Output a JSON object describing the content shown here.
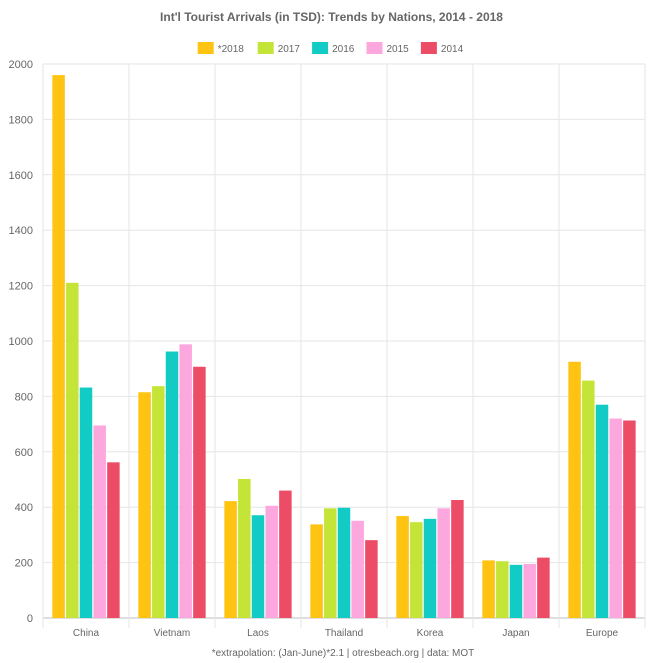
{
  "chart_data": {
    "type": "bar",
    "title": "Int'l Tourist Arrivals (in TSD): Trends by Nations, 2014 - 2018",
    "categories": [
      "China",
      "Vietnam",
      "Laos",
      "Thailand",
      "Korea",
      "Japan",
      "Europe"
    ],
    "series": [
      {
        "name": "*2018",
        "color": "#FFC312",
        "values": [
          1960,
          815,
          422,
          338,
          368,
          208,
          925
        ]
      },
      {
        "name": "2017",
        "color": "#C4E538",
        "values": [
          1210,
          837,
          502,
          396,
          346,
          205,
          857
        ]
      },
      {
        "name": "2016",
        "color": "#12CBC4",
        "values": [
          832,
          962,
          371,
          398,
          358,
          192,
          770
        ]
      },
      {
        "name": "2015",
        "color": "#FDA7DF",
        "values": [
          695,
          988,
          405,
          351,
          396,
          195,
          720
        ]
      },
      {
        "name": "2014",
        "color": "#ED4C67",
        "values": [
          562,
          907,
          460,
          281,
          426,
          218,
          713
        ]
      }
    ],
    "ylim": [
      0,
      2000
    ],
    "yticks": [
      0,
      200,
      400,
      600,
      800,
      1000,
      1200,
      1400,
      1600,
      1800,
      2000
    ],
    "xlabel": "",
    "ylabel": "",
    "grid": true,
    "legend_position": "top-center",
    "footnote": "*extrapolation: (Jan-June)*2.1 | otresbeach.org | data: MOT"
  }
}
